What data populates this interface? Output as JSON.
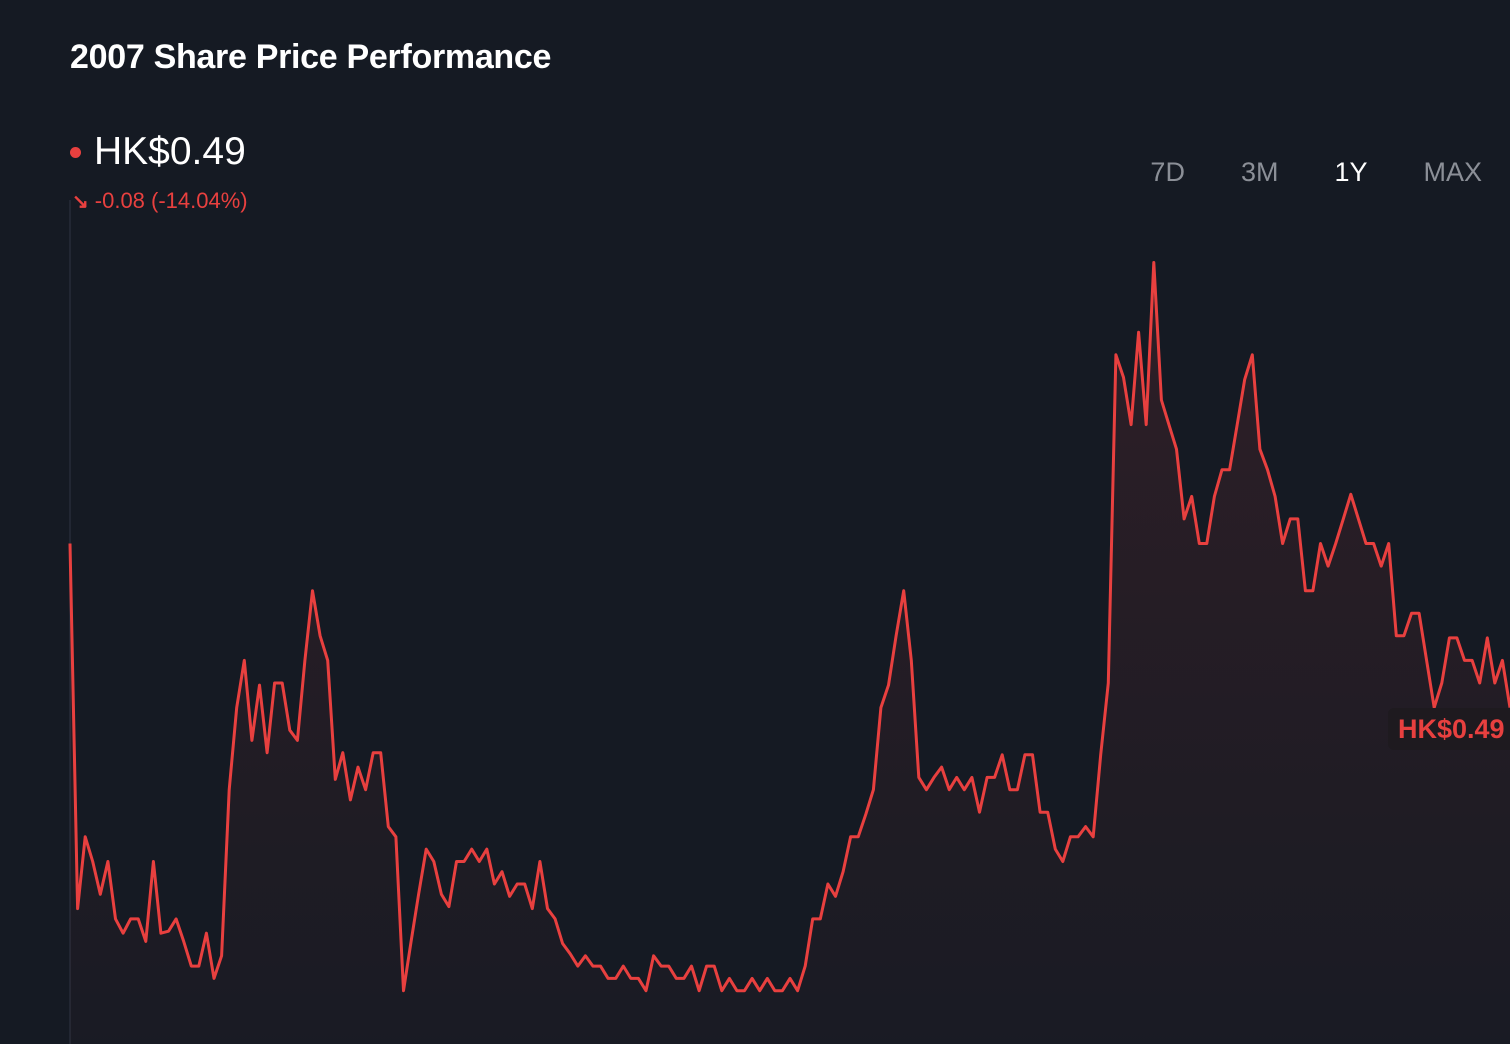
{
  "title": "2007 Share Price Performance",
  "current_price": "HK$0.49",
  "change": "-0.08 (-14.04%)",
  "change_icon": "arrow-down-right-icon",
  "periods": [
    {
      "label": "7D",
      "active": false
    },
    {
      "label": "3M",
      "active": false
    },
    {
      "label": "1Y",
      "active": true
    },
    {
      "label": "MAX",
      "active": false
    }
  ],
  "end_label": "HK$0.49",
  "colors": {
    "line": "#e8403f",
    "background": "#151a23"
  },
  "chart_data": {
    "type": "area",
    "title": "2007 Share Price Performance",
    "xlabel": "",
    "ylabel": "",
    "grid": false,
    "unit": "HK$",
    "ylim": [
      0.326,
      0.835
    ],
    "period": "1Y",
    "series": [
      {
        "values": [
          0.57,
          0.392,
          0.427,
          0.415,
          0.399,
          0.415,
          0.387,
          0.38,
          0.387,
          0.387,
          0.376,
          0.415,
          0.38,
          0.381,
          0.387,
          0.376,
          0.364,
          0.364,
          0.38,
          0.358,
          0.369,
          0.45,
          0.49,
          0.513,
          0.474,
          0.501,
          0.468,
          0.502,
          0.502,
          0.479,
          0.474,
          0.513,
          0.547,
          0.525,
          0.513,
          0.455,
          0.468,
          0.445,
          0.461,
          0.45,
          0.468,
          0.468,
          0.432,
          0.427,
          0.352,
          0.376,
          0.399,
          0.421,
          0.415,
          0.399,
          0.393,
          0.415,
          0.415,
          0.421,
          0.415,
          0.421,
          0.404,
          0.41,
          0.398,
          0.404,
          0.404,
          0.392,
          0.415,
          0.392,
          0.387,
          0.375,
          0.37,
          0.364,
          0.369,
          0.364,
          0.364,
          0.358,
          0.358,
          0.364,
          0.358,
          0.358,
          0.352,
          0.369,
          0.364,
          0.364,
          0.358,
          0.358,
          0.364,
          0.352,
          0.364,
          0.364,
          0.352,
          0.358,
          0.352,
          0.352,
          0.358,
          0.352,
          0.358,
          0.352,
          0.352,
          0.358,
          0.352,
          0.364,
          0.387,
          0.387,
          0.404,
          0.398,
          0.41,
          0.427,
          0.427,
          0.438,
          0.45,
          0.49,
          0.501,
          0.525,
          0.547,
          0.513,
          0.456,
          0.45,
          0.456,
          0.461,
          0.45,
          0.456,
          0.45,
          0.456,
          0.439,
          0.456,
          0.456,
          0.467,
          0.45,
          0.45,
          0.467,
          0.467,
          0.439,
          0.439,
          0.421,
          0.415,
          0.427,
          0.427,
          0.432,
          0.427,
          0.467,
          0.502,
          0.662,
          0.651,
          0.628,
          0.673,
          0.628,
          0.707,
          0.64,
          0.628,
          0.616,
          0.582,
          0.593,
          0.57,
          0.57,
          0.593,
          0.606,
          0.606,
          0.628,
          0.65,
          0.662,
          0.616,
          0.606,
          0.593,
          0.57,
          0.582,
          0.582,
          0.547,
          0.547,
          0.57,
          0.559,
          0.57,
          0.582,
          0.594,
          0.582,
          0.57,
          0.57,
          0.559,
          0.57,
          0.525,
          0.525,
          0.536,
          0.536,
          0.513,
          0.49,
          0.502,
          0.524,
          0.524,
          0.513,
          0.513,
          0.502,
          0.524,
          0.502,
          0.513,
          0.49
        ]
      }
    ]
  }
}
